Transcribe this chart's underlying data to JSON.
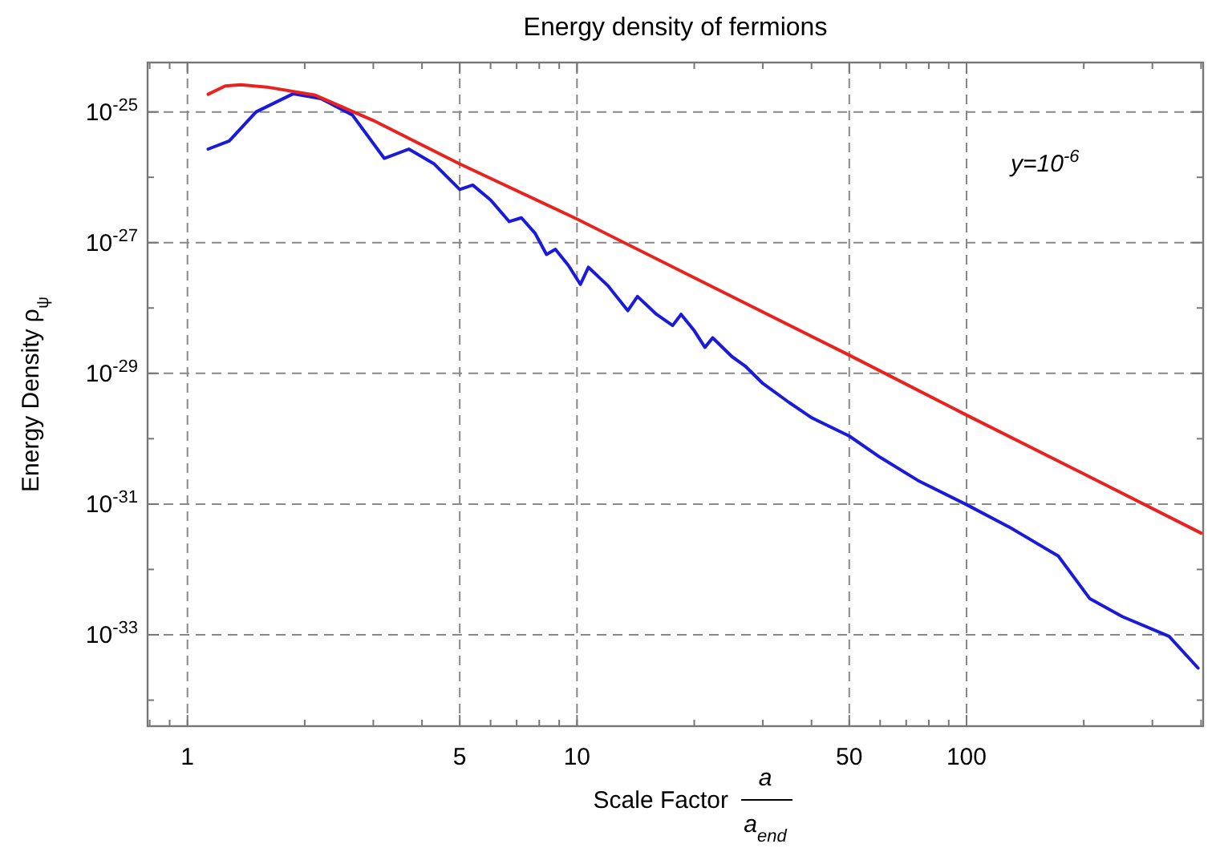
{
  "chart_data": {
    "type": "line",
    "title": "Energy density of fermions",
    "xlabel": "Scale Factor a a$_{end}$",
    "ylabel": "Energy Density ρ$_{ψ}$",
    "annotations": [
      "y=10$^{-6}$"
    ],
    "log": "xy",
    "grid": true,
    "line_style": "solid",
    "xlim": [
      0.79,
      405
    ],
    "ylim": [
      4e-35,
      5.7e-25
    ],
    "xticks": [
      {
        "value": 0.8,
        "label": null
      },
      {
        "value": 0.9,
        "label": null
      },
      1,
      {
        "value": 2,
        "label": null
      },
      {
        "value": 3,
        "label": null
      },
      {
        "value": 4,
        "label": null
      },
      5,
      {
        "value": 6,
        "label": null
      },
      {
        "value": 7,
        "label": null
      },
      {
        "value": 8,
        "label": null
      },
      {
        "value": 9,
        "label": null
      },
      10,
      {
        "value": 20,
        "label": null
      },
      {
        "value": 30,
        "label": null
      },
      {
        "value": 40,
        "label": null
      },
      50,
      {
        "value": 60,
        "label": null
      },
      {
        "value": 70,
        "label": null
      },
      {
        "value": 80,
        "label": null
      },
      {
        "value": 90,
        "label": null
      },
      100,
      {
        "value": 200,
        "label": null
      },
      {
        "value": 300,
        "label": null
      },
      {
        "value": 400,
        "label": null
      }
    ],
    "yticks": [
      {
        "value": 1e-34,
        "label": null
      },
      {
        "value": 1e-33,
        "label": "10$^{-33}$"
      },
      {
        "value": 1e-32,
        "label": null
      },
      {
        "value": 1e-31,
        "label": "10$^{-31}$"
      },
      {
        "value": 1e-30,
        "label": null
      },
      {
        "value": 1e-29,
        "label": "10$^{-29}$"
      },
      {
        "value": 1e-28,
        "label": null
      },
      {
        "value": 1e-27,
        "label": "10$^{-27}$"
      },
      {
        "value": 1e-26,
        "label": null
      },
      {
        "value": 1e-25,
        "label": "10$^{-25}$"
      }
    ],
    "series": [
      {
        "color": "#1a1adb",
        "x": [
          1.13,
          1.28,
          1.5,
          1.87,
          2.2,
          2.65,
          3.2,
          3.7,
          4.3,
          5.0,
          5.4,
          6.0,
          6.7,
          7.2,
          7.8,
          8.35,
          8.8,
          9.5,
          10.2,
          10.7,
          12,
          13.5,
          14.3,
          16,
          17.6,
          18.5,
          20,
          21.3,
          22.3,
          25,
          27,
          30,
          35,
          40,
          50,
          60,
          75,
          100,
          130,
          172,
          207,
          251,
          331,
          393
        ],
        "values": [
          2.7e-26,
          3.6e-26,
          1e-25,
          1.9e-25,
          1.6e-25,
          9e-26,
          1.95e-26,
          2.7e-26,
          1.6e-26,
          6.5e-27,
          7.6e-27,
          4.5e-27,
          2.1e-27,
          2.4e-27,
          1.4e-27,
          6.6e-28,
          7.9e-28,
          4.5e-28,
          2.3e-28,
          4.2e-28,
          2.2e-28,
          9.1e-29,
          1.5e-28,
          8e-29,
          5.4e-29,
          8e-29,
          4.5e-29,
          2.5e-29,
          3.5e-29,
          1.8e-29,
          1.3e-29,
          7e-30,
          3.6e-30,
          2.1e-30,
          1.1e-30,
          5.2e-31,
          2.3e-31,
          9.8e-32,
          4.3e-32,
          1.6e-32,
          3.6e-33,
          1.9e-33,
          9.5e-34,
          3.1e-34
        ]
      },
      {
        "color": "#e8231f",
        "x": [
          1.13,
          1.25,
          1.37,
          1.6,
          2.13,
          3,
          5,
          10,
          20,
          50,
          100,
          200,
          400
        ],
        "values": [
          1.86e-25,
          2.5e-25,
          2.6e-25,
          2.4e-25,
          1.8e-25,
          7.4e-26,
          1.6e-26,
          2.3e-27,
          2.9e-28,
          1.9e-29,
          2.3e-30,
          2.9e-31,
          3.6e-32
        ]
      }
    ]
  }
}
